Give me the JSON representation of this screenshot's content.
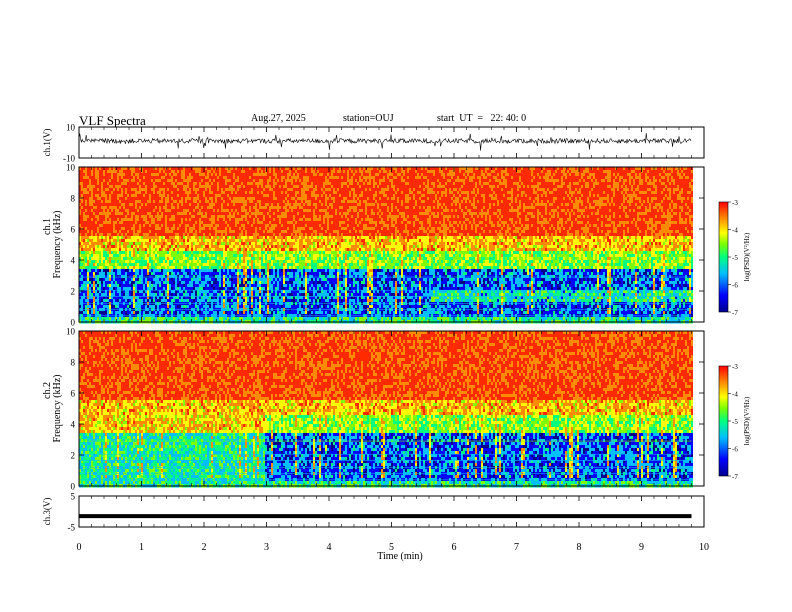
{
  "header": {
    "title": "VLF Spectra",
    "date": "Aug.27, 2025",
    "station": "station=OUJ",
    "start": "start  UT  =   22: 40: 0"
  },
  "colors": {
    "spectrum": [
      "#00008b",
      "#0000ff",
      "#00bfff",
      "#00ff7f",
      "#7fff00",
      "#ffff00",
      "#ff8c00",
      "#ff2a00"
    ],
    "trace": "#000000"
  },
  "chart_data": [
    {
      "type": "line",
      "ylabel": "ch.1(V)",
      "ylim": [
        -10,
        10
      ],
      "ytick_labels": [
        "10",
        "-10"
      ],
      "x_range_min": [
        0,
        9.8
      ],
      "description": "waveform ch.1, noisy around ~+1 V with spikes"
    },
    {
      "type": "heatmap",
      "ylabel_top": "ch.1",
      "ylabel": "Frequency (kHz)",
      "ylim": [
        0,
        10
      ],
      "ytick_labels": [
        "0",
        "2",
        "4",
        "6",
        "8",
        "10"
      ],
      "x_range_min": [
        0,
        9.8
      ],
      "colorbar": {
        "label": "log(PSD)(V²/Hz)",
        "range": [
          -7,
          -3
        ],
        "tick_labels": [
          "-3",
          "-4",
          "-5",
          "-6",
          "-7"
        ]
      }
    },
    {
      "type": "heatmap",
      "ylabel_top": "ch.2",
      "ylabel": "Frequency (kHz)",
      "ylim": [
        0,
        10
      ],
      "ytick_labels": [
        "0",
        "2",
        "4",
        "6",
        "8",
        "10"
      ],
      "x_range_min": [
        0,
        9.8
      ],
      "colorbar": {
        "label": "log(PSD)(V²/Hz)",
        "range": [
          -7,
          -3
        ],
        "tick_labels": [
          "-3",
          "-4",
          "-5",
          "-6",
          "-7"
        ]
      }
    },
    {
      "type": "line",
      "ylabel": "ch.3(V)",
      "ylim": [
        -5,
        5
      ],
      "ytick_labels": [
        "5",
        "-5"
      ],
      "x": [
        0,
        9.8
      ],
      "y": [
        -1.5,
        -1.5
      ]
    }
  ],
  "xaxis": {
    "label": "Time (min)",
    "xlim": [
      0,
      10
    ],
    "tick_labels": [
      "0",
      "1",
      "2",
      "3",
      "4",
      "5",
      "6",
      "7",
      "8",
      "9",
      "10"
    ]
  }
}
